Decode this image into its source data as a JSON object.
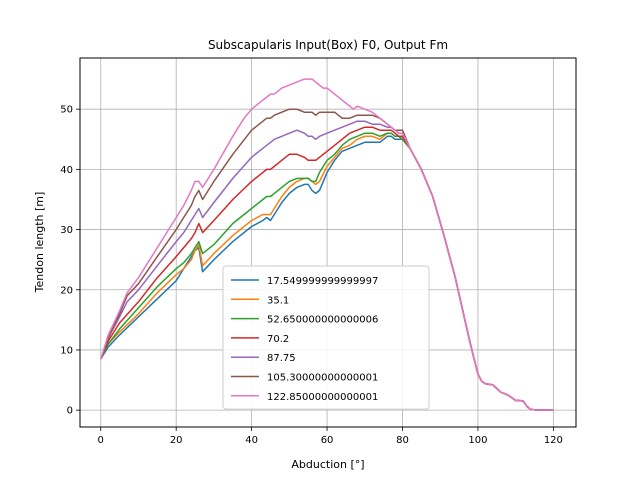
{
  "chart_data": {
    "type": "line",
    "title": "Subscapularis Input(Box) F0, Output Fm",
    "xlabel": "Abduction [°]",
    "ylabel": "Tendon length [m]",
    "xlim": [
      -5.5,
      126
    ],
    "ylim": [
      -2.8,
      58.5
    ],
    "xticks": [
      0,
      20,
      40,
      60,
      80,
      100,
      120
    ],
    "yticks": [
      0,
      10,
      20,
      30,
      40,
      50
    ],
    "grid": true,
    "legend_position": "lower-center",
    "tail": {
      "x": [
        82,
        85,
        88,
        91,
        94,
        96,
        98,
        100,
        101,
        102,
        104,
        106,
        108,
        110,
        111,
        112,
        113,
        114,
        116,
        118,
        120
      ],
      "y": [
        43.5,
        40.0,
        35.5,
        29.0,
        22.0,
        16.5,
        11.0,
        6.0,
        4.8,
        4.4,
        4.2,
        3.0,
        2.5,
        1.6,
        1.6,
        1.5,
        0.6,
        0.1,
        0.0,
        0.0,
        0.0
      ]
    },
    "series": [
      {
        "name": "17.549999999999997",
        "color": "#1f77b4",
        "x": [
          0,
          2,
          5,
          10,
          15,
          20,
          21,
          22,
          24,
          25,
          26,
          27,
          30,
          35,
          40,
          43,
          44,
          45,
          46,
          48,
          50,
          52,
          54,
          55,
          56,
          57,
          58,
          60,
          62,
          64,
          66,
          68,
          70,
          72,
          74,
          76,
          77,
          78,
          79,
          80
        ],
        "y": [
          8.5,
          10.5,
          12.5,
          15.5,
          18.5,
          21.5,
          22.5,
          23.5,
          25.5,
          26.5,
          27.0,
          23.0,
          25.0,
          28.0,
          30.5,
          31.5,
          32.0,
          31.5,
          32.5,
          34.5,
          36.0,
          37.0,
          37.5,
          37.5,
          36.5,
          36.0,
          36.5,
          39.5,
          41.5,
          43.0,
          43.5,
          44.0,
          44.5,
          44.5,
          44.5,
          45.5,
          45.5,
          45.0,
          45.0,
          45.0
        ]
      },
      {
        "name": "35.1",
        "color": "#ff7f0e",
        "x": [
          0,
          2,
          5,
          10,
          15,
          20,
          22,
          24,
          25,
          26,
          27,
          30,
          35,
          40,
          43,
          44,
          45,
          46,
          48,
          50,
          52,
          54,
          55,
          56,
          57,
          58,
          60,
          62,
          64,
          66,
          68,
          70,
          72,
          74,
          76,
          77,
          78,
          79,
          80
        ],
        "y": [
          8.5,
          11.0,
          13.0,
          16.0,
          19.5,
          22.5,
          23.5,
          25.0,
          26.5,
          27.5,
          24.0,
          26.0,
          29.0,
          31.5,
          32.5,
          32.5,
          32.5,
          33.5,
          35.5,
          37.0,
          38.0,
          38.5,
          38.5,
          38.0,
          37.5,
          38.0,
          40.5,
          42.0,
          43.5,
          44.0,
          45.0,
          45.5,
          45.5,
          45.0,
          46.0,
          46.0,
          45.5,
          45.5,
          45.0
        ]
      },
      {
        "name": "52.650000000000006",
        "color": "#2ca02c",
        "x": [
          0,
          2,
          5,
          10,
          15,
          20,
          22,
          24,
          25,
          26,
          27,
          30,
          35,
          40,
          43,
          44,
          45,
          46,
          48,
          50,
          52,
          54,
          55,
          56,
          57,
          58,
          60,
          62,
          64,
          66,
          68,
          70,
          72,
          74,
          76,
          77,
          78,
          79,
          80
        ],
        "y": [
          8.5,
          11.0,
          13.5,
          17.0,
          20.5,
          23.5,
          24.5,
          26.0,
          27.0,
          28.0,
          26.0,
          27.5,
          31.0,
          33.5,
          35.0,
          35.5,
          35.5,
          36.0,
          37.0,
          38.0,
          38.5,
          38.5,
          38.5,
          38.0,
          38.0,
          39.5,
          41.5,
          42.5,
          44.0,
          45.0,
          45.5,
          46.0,
          46.0,
          45.5,
          46.0,
          46.0,
          45.5,
          45.5,
          45.0
        ]
      },
      {
        "name": "70.2",
        "color": "#d62728",
        "x": [
          0,
          2,
          5,
          10,
          15,
          20,
          22,
          24,
          25,
          26,
          27,
          30,
          35,
          40,
          43,
          44,
          45,
          46,
          48,
          50,
          52,
          54,
          55,
          56,
          57,
          58,
          60,
          62,
          64,
          66,
          68,
          70,
          72,
          74,
          76,
          77,
          78,
          79,
          80
        ],
        "y": [
          8.5,
          11.5,
          14.5,
          18.0,
          22.0,
          25.5,
          27.0,
          28.5,
          29.5,
          31.0,
          29.5,
          31.5,
          35.0,
          38.0,
          39.5,
          40.0,
          40.0,
          40.5,
          41.5,
          42.5,
          42.5,
          42.0,
          41.5,
          41.5,
          41.5,
          42.0,
          43.0,
          44.0,
          45.0,
          46.0,
          46.5,
          47.0,
          47.0,
          46.5,
          46.5,
          46.5,
          46.0,
          45.5,
          45.5
        ]
      },
      {
        "name": "87.75",
        "color": "#9467bd",
        "x": [
          0,
          2,
          5,
          7,
          10,
          15,
          20,
          22,
          24,
          25,
          26,
          27,
          30,
          35,
          40,
          43,
          44,
          45,
          46,
          48,
          50,
          52,
          54,
          55,
          56,
          57,
          58,
          60,
          62,
          64,
          66,
          68,
          70,
          72,
          74,
          76,
          77,
          78,
          79,
          80
        ],
        "y": [
          8.5,
          12.0,
          15.5,
          18.0,
          20.0,
          24.0,
          28.0,
          29.5,
          31.5,
          32.5,
          33.5,
          32.0,
          34.5,
          38.5,
          42.0,
          43.5,
          44.0,
          44.5,
          45.0,
          45.5,
          46.0,
          46.5,
          46.0,
          45.5,
          45.5,
          45.0,
          45.5,
          46.0,
          46.5,
          47.0,
          47.5,
          48.0,
          48.0,
          47.5,
          47.5,
          47.0,
          47.0,
          46.5,
          46.0,
          46.0
        ]
      },
      {
        "name": "105.30000000000001",
        "color": "#8c564b",
        "x": [
          0,
          2,
          5,
          7,
          10,
          15,
          20,
          22,
          24,
          25,
          26,
          27,
          30,
          35,
          40,
          43,
          44,
          45,
          46,
          48,
          50,
          52,
          54,
          55,
          56,
          57,
          58,
          60,
          62,
          64,
          66,
          68,
          70,
          72,
          74,
          76,
          77,
          78,
          79,
          80
        ],
        "y": [
          8.5,
          12.0,
          16.0,
          19.0,
          21.0,
          25.5,
          30.0,
          32.0,
          34.0,
          35.5,
          36.5,
          35.0,
          38.0,
          42.5,
          46.5,
          48.0,
          48.5,
          48.5,
          49.0,
          49.5,
          50.0,
          50.0,
          49.5,
          49.5,
          49.5,
          49.0,
          49.5,
          49.5,
          49.5,
          48.5,
          48.5,
          49.0,
          49.0,
          49.0,
          48.5,
          47.5,
          47.0,
          46.5,
          46.5,
          46.5
        ]
      },
      {
        "name": "122.85000000000001",
        "color": "#e377c2",
        "x": [
          0,
          2,
          5,
          7,
          10,
          15,
          20,
          22,
          24,
          25,
          26,
          27,
          30,
          35,
          38,
          40,
          43,
          44,
          45,
          46,
          48,
          50,
          52,
          54,
          55,
          56,
          57,
          58,
          59,
          60,
          62,
          64,
          65,
          66,
          67,
          68,
          70,
          72,
          74,
          76,
          77,
          78,
          79,
          80
        ],
        "y": [
          8.5,
          12.5,
          16.5,
          19.5,
          22.0,
          27.0,
          32.0,
          34.0,
          36.5,
          38.0,
          38.0,
          37.0,
          40.0,
          45.5,
          48.5,
          50.0,
          51.5,
          52.0,
          52.5,
          52.5,
          53.5,
          54.0,
          54.5,
          55.0,
          55.0,
          55.0,
          54.5,
          54.0,
          53.5,
          53.5,
          52.5,
          51.5,
          51.0,
          50.5,
          50.0,
          50.5,
          50.0,
          49.5,
          48.5,
          47.5,
          47.0,
          46.5,
          46.0,
          46.0
        ]
      }
    ]
  }
}
